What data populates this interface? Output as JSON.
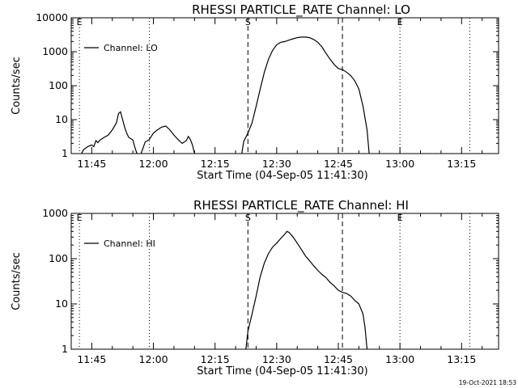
{
  "footer": {
    "timestamp": "19-Oct-2021 18:53"
  },
  "chart_data": [
    {
      "type": "line",
      "title": "RHESSI PARTICLE_RATE Channel: LO",
      "xlabel": "Start Time (04-Sep-05 11:41:30)",
      "ylabel": "Counts/sec",
      "yscale": "log",
      "ylim": [
        1,
        10000
      ],
      "xlim": [
        "11:40",
        "13:24"
      ],
      "x_ticks": [
        "11:45",
        "12:00",
        "12:15",
        "12:30",
        "12:45",
        "13:00",
        "13:15"
      ],
      "y_ticks": [
        "1",
        "10",
        "100",
        "1000",
        "10000"
      ],
      "legend": {
        "position": "top-left",
        "entries": [
          "Channel: LO"
        ]
      },
      "markers": [
        {
          "time": "11:42",
          "label": "E",
          "style": "dotted"
        },
        {
          "time": "11:59",
          "label": "",
          "style": "dotted"
        },
        {
          "time": "12:23",
          "label": "S",
          "style": "dashed"
        },
        {
          "time": "12:46",
          "label": "",
          "style": "dashed"
        },
        {
          "time": "13:00",
          "label": "E",
          "style": "dotted"
        },
        {
          "time": "13:17",
          "label": "",
          "style": "dotted"
        }
      ],
      "series": [
        {
          "segments": [
            {
              "x": [
                "11:42:30",
                "11:43",
                "11:44",
                "11:45",
                "11:45:30",
                "11:46",
                "11:46:30",
                "11:47",
                "11:48",
                "11:49",
                "11:50",
                "11:51",
                "11:51:30",
                "11:52",
                "11:52:30",
                "11:53",
                "11:53:30",
                "11:54",
                "11:55",
                "11:55:30",
                "11:56"
              ],
              "y": [
                1,
                1.3,
                1.6,
                1.8,
                1.6,
                2.4,
                2.1,
                2.5,
                3,
                3.5,
                5,
                8,
                15,
                17,
                10,
                6,
                4,
                3,
                2.5,
                1.5,
                1
              ]
            },
            {
              "x": [
                "11:57",
                "11:58",
                "11:59",
                "12:00",
                "12:01",
                "12:02",
                "12:03",
                "12:04",
                "12:05",
                "12:06",
                "12:07",
                "12:08",
                "12:08:30",
                "12:09",
                "12:09:30",
                "12:10"
              ],
              "y": [
                1,
                2.2,
                2.6,
                4,
                5,
                6,
                6.5,
                5,
                3.5,
                2.6,
                2,
                2.4,
                3.2,
                2.6,
                1.8,
                1
              ]
            },
            {
              "x": [
                "12:21:30",
                "12:22",
                "12:23",
                "12:24",
                "12:25",
                "12:26",
                "12:27",
                "12:28",
                "12:29",
                "12:30",
                "12:31",
                "12:32",
                "12:33",
                "12:34",
                "12:35",
                "12:36",
                "12:37",
                "12:38",
                "12:39",
                "12:40",
                "12:41",
                "12:42",
                "12:43",
                "12:44",
                "12:45",
                "12:46",
                "12:47",
                "12:48",
                "12:49",
                "12:50",
                "12:51",
                "12:52",
                "12:52:30"
              ],
              "y": [
                1,
                2.3,
                4,
                8,
                25,
                80,
                250,
                600,
                1100,
                1600,
                1900,
                2000,
                2200,
                2400,
                2600,
                2700,
                2700,
                2600,
                2300,
                1900,
                1400,
                900,
                600,
                420,
                320,
                300,
                250,
                200,
                140,
                80,
                25,
                5,
                1
              ]
            }
          ]
        }
      ]
    },
    {
      "type": "line",
      "title": "RHESSI PARTICLE_RATE Channel: HI",
      "xlabel": "Start Time (04-Sep-05 11:41:30)",
      "ylabel": "Counts/sec",
      "yscale": "log",
      "ylim": [
        1,
        1000
      ],
      "xlim": [
        "11:40",
        "13:24"
      ],
      "x_ticks": [
        "11:45",
        "12:00",
        "12:15",
        "12:30",
        "12:45",
        "13:00",
        "13:15"
      ],
      "y_ticks": [
        "1",
        "10",
        "100",
        "1000"
      ],
      "legend": {
        "position": "top-left",
        "entries": [
          "Channel: HI"
        ]
      },
      "markers": [
        {
          "time": "11:42",
          "label": "E",
          "style": "dotted"
        },
        {
          "time": "11:59",
          "label": "",
          "style": "dotted"
        },
        {
          "time": "12:23",
          "label": "S",
          "style": "dashed"
        },
        {
          "time": "12:46",
          "label": "",
          "style": "dashed"
        },
        {
          "time": "13:00",
          "label": "E",
          "style": "dotted"
        },
        {
          "time": "13:17",
          "label": "",
          "style": "dotted"
        }
      ],
      "series": [
        {
          "segments": [
            {
              "x": [
                "12:22:30",
                "12:23",
                "12:24",
                "12:25",
                "12:26",
                "12:27",
                "12:28",
                "12:29",
                "12:30",
                "12:31",
                "12:32",
                "12:32:30",
                "12:33",
                "12:34",
                "12:35",
                "12:36",
                "12:37",
                "12:38",
                "12:39",
                "12:40",
                "12:41",
                "12:42",
                "12:43",
                "12:44",
                "12:45",
                "12:46",
                "12:47",
                "12:48",
                "12:49",
                "12:50",
                "12:51",
                "12:51:30",
                "12:52"
              ],
              "y": [
                1,
                2.5,
                6,
                15,
                40,
                80,
                130,
                180,
                220,
                280,
                350,
                400,
                380,
                300,
                220,
                160,
                115,
                90,
                70,
                55,
                45,
                38,
                30,
                25,
                20,
                18,
                17,
                15,
                12,
                10,
                6,
                3,
                1
              ]
            }
          ]
        }
      ]
    }
  ]
}
